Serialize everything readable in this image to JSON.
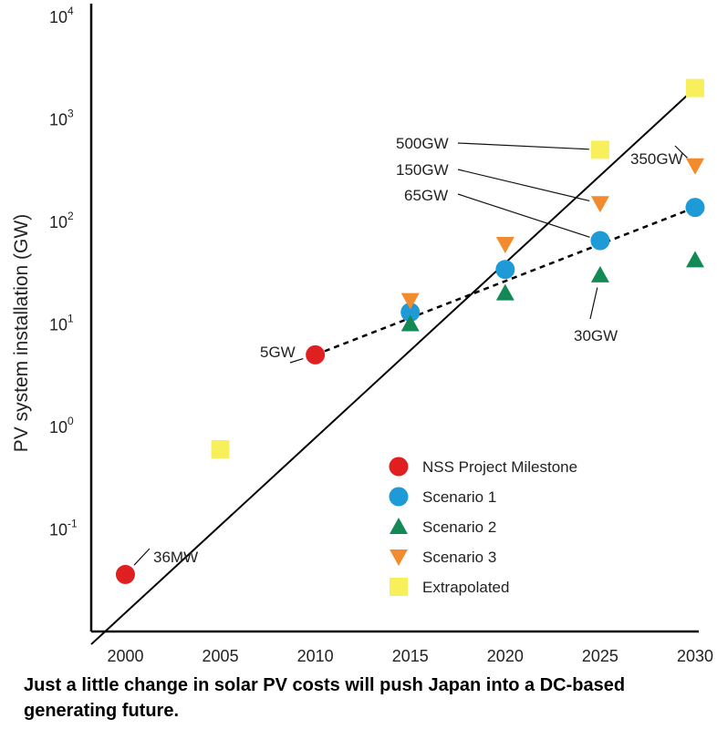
{
  "caption": "Just a little change in solar PV costs will push Japan into a DC-based generating future.",
  "chart_data": {
    "type": "scatter",
    "title": "",
    "xlabel": "",
    "ylabel": "PV system installation (GW)",
    "yscale": "log",
    "xlim": [
      1998.2,
      2030
    ],
    "ylim": [
      0.01,
      10000
    ],
    "x_ticks": [
      2000,
      2005,
      2010,
      2015,
      2020,
      2025,
      2030
    ],
    "y_ticks": [
      {
        "base": "10",
        "exp": "-1",
        "value": 0.1
      },
      {
        "base": "10",
        "exp": "0",
        "value": 1
      },
      {
        "base": "10",
        "exp": "1",
        "value": 10
      },
      {
        "base": "10",
        "exp": "2",
        "value": 100
      },
      {
        "base": "10",
        "exp": "3",
        "value": 1000
      },
      {
        "base": "10",
        "exp": "4",
        "value": 10000
      }
    ],
    "legend_position": "bottom-right",
    "series": [
      {
        "name": "NSS Project Milestone",
        "marker": "circle",
        "color": "#e02020",
        "points": [
          {
            "x": 2000,
            "y": 0.036
          },
          {
            "x": 2010,
            "y": 5
          }
        ]
      },
      {
        "name": "Scenario 1",
        "marker": "circle",
        "color": "#1e9ad6",
        "points": [
          {
            "x": 2015,
            "y": 13
          },
          {
            "x": 2020,
            "y": 34
          },
          {
            "x": 2025,
            "y": 65
          },
          {
            "x": 2030,
            "y": 137
          }
        ]
      },
      {
        "name": "Scenario 2",
        "marker": "triangle-up",
        "color": "#138a55",
        "points": [
          {
            "x": 2015,
            "y": 10
          },
          {
            "x": 2020,
            "y": 20
          },
          {
            "x": 2025,
            "y": 30
          },
          {
            "x": 2030,
            "y": 42
          }
        ]
      },
      {
        "name": "Scenario 3",
        "marker": "triangle-down",
        "color": "#f28a2e",
        "points": [
          {
            "x": 2015,
            "y": 17
          },
          {
            "x": 2020,
            "y": 60
          },
          {
            "x": 2025,
            "y": 150
          },
          {
            "x": 2030,
            "y": 350
          }
        ]
      },
      {
        "name": "Extrapolated",
        "marker": "square",
        "color": "#f8f05a",
        "points": [
          {
            "x": 2005,
            "y": 0.6
          },
          {
            "x": 2025,
            "y": 500
          },
          {
            "x": 2030,
            "y": 2000
          }
        ]
      }
    ],
    "lines": [
      {
        "style": "solid",
        "from": {
          "x": 1998.2,
          "y": 0.0075
        },
        "to": {
          "x": 2030,
          "y": 2000
        }
      },
      {
        "style": "dashed",
        "from": {
          "x": 2010,
          "y": 5
        },
        "to": {
          "x": 2030,
          "y": 137
        }
      }
    ],
    "annotations": [
      {
        "text": "36MW",
        "x": 2000,
        "y": 0.036
      },
      {
        "text": "5GW",
        "x": 2010,
        "y": 5
      },
      {
        "text": "500GW",
        "x": 2025,
        "y": 500
      },
      {
        "text": "150GW",
        "x": 2025,
        "y": 150
      },
      {
        "text": "65GW",
        "x": 2025,
        "y": 65
      },
      {
        "text": "350GW",
        "x": 2030,
        "y": 350
      },
      {
        "text": "30GW",
        "x": 2025,
        "y": 30
      }
    ]
  }
}
